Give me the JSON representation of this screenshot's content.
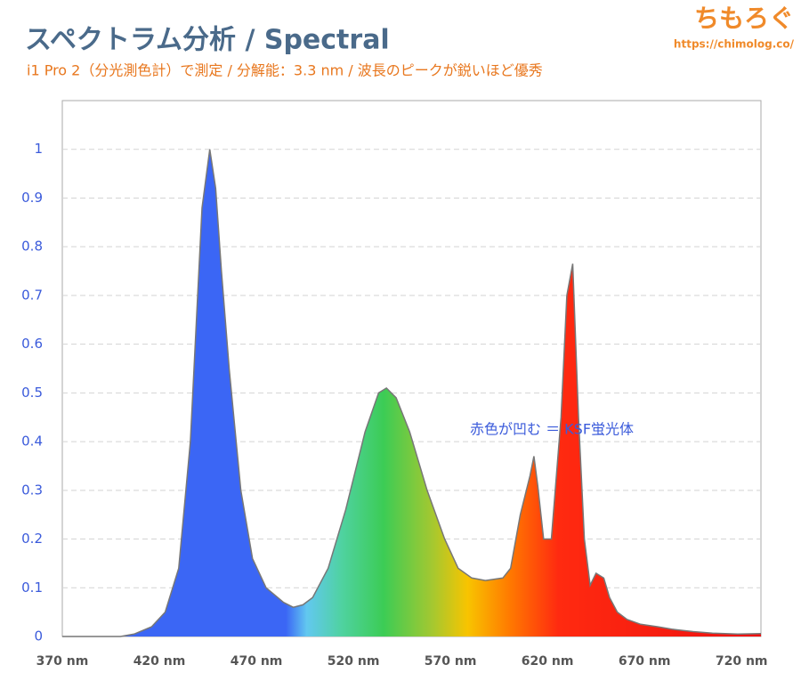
{
  "chart_data": {
    "type": "area",
    "title": "スペクトラム分析 / Spectral",
    "subtitle": "i1 Pro 2（分光測色計）で測定 / 分解能：3.3 nm / 波長のピークが鋭いほど優秀",
    "brand": "ちもろぐ",
    "url": "https://chimolog.co/",
    "annotation": "赤色が凹む ＝ KSF蛍光体",
    "x": [
      370,
      400,
      407,
      416,
      423,
      430,
      436,
      442,
      446,
      449,
      452,
      456,
      462,
      468,
      475,
      484,
      489,
      494,
      499,
      507,
      516,
      526,
      533,
      537,
      542,
      549,
      558,
      567,
      574,
      581,
      588,
      597,
      601,
      606,
      611,
      613,
      615,
      618,
      622,
      627,
      630,
      633,
      636,
      639,
      642,
      645,
      649,
      652,
      656,
      661,
      668,
      677,
      684,
      695,
      705,
      718,
      730
    ],
    "values": [
      0,
      0,
      0.005,
      0.02,
      0.05,
      0.14,
      0.4,
      0.88,
      1,
      0.92,
      0.75,
      0.55,
      0.3,
      0.16,
      0.1,
      0.07,
      0.06,
      0.065,
      0.08,
      0.14,
      0.26,
      0.42,
      0.5,
      0.51,
      0.49,
      0.42,
      0.3,
      0.2,
      0.14,
      0.12,
      0.115,
      0.12,
      0.14,
      0.25,
      0.33,
      0.37,
      0.31,
      0.2,
      0.2,
      0.45,
      0.7,
      0.765,
      0.45,
      0.2,
      0.105,
      0.13,
      0.12,
      0.08,
      0.05,
      0.035,
      0.025,
      0.02,
      0.015,
      0.01,
      0.007,
      0.005,
      0.006
    ],
    "xlim": [
      370,
      730
    ],
    "ylim": [
      0,
      1.1
    ],
    "xticks": [
      {
        "value": 370,
        "label": "370 nm"
      },
      {
        "value": 420,
        "label": "420 nm"
      },
      {
        "value": 470,
        "label": "470 nm"
      },
      {
        "value": 520,
        "label": "520 nm"
      },
      {
        "value": 570,
        "label": "570 nm"
      },
      {
        "value": 620,
        "label": "620 nm"
      },
      {
        "value": 670,
        "label": "670 nm"
      },
      {
        "value": 720,
        "label": "720 nm"
      }
    ],
    "yticks": [
      0,
      0.1,
      0.2,
      0.3,
      0.4,
      0.5,
      0.6,
      0.7,
      0.8,
      0.9,
      1
    ],
    "grid": true
  }
}
